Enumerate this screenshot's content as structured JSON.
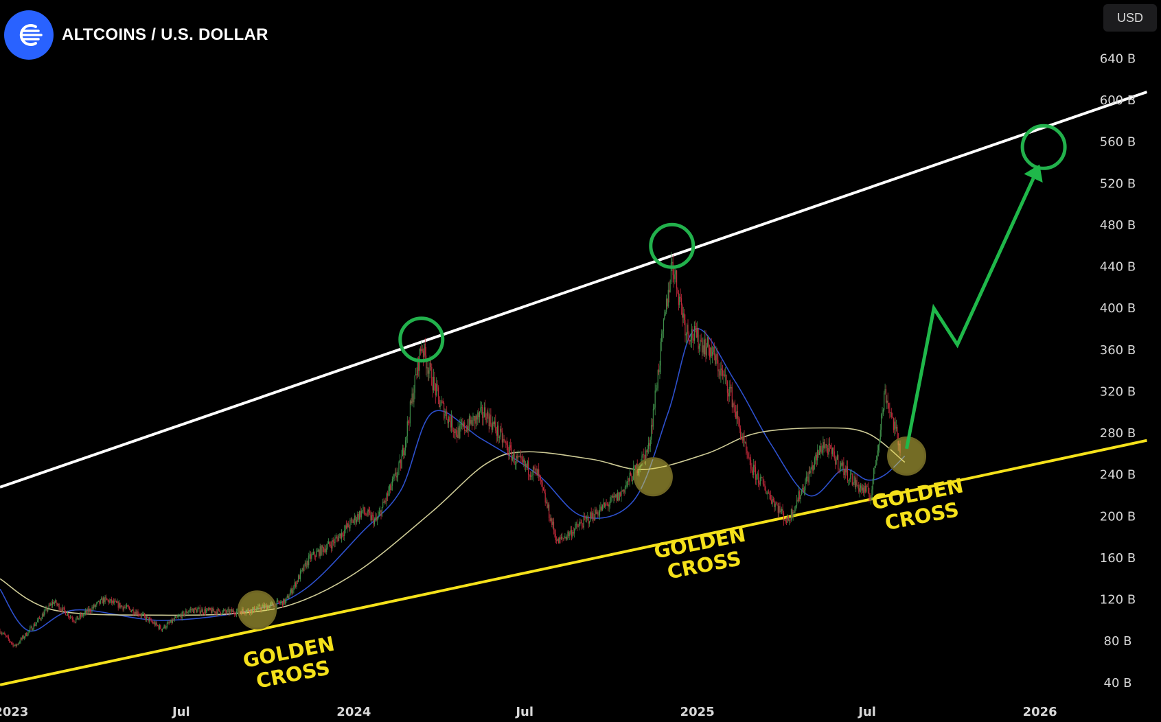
{
  "header": {
    "title": "ALTCOINS / U.S. DOLLAR",
    "logo_icon": "altcoin-logo-icon",
    "currency": "USD"
  },
  "colors": {
    "background": "#000000",
    "candle_up": "#3f8f4a",
    "candle_down": "#c0283a",
    "ma_fast": "#2f54d8",
    "ma_slow": "#f2efb0",
    "resistance_line": "#ffffff",
    "support_line": "#f5e11a",
    "highlight_circle": "#22b14c",
    "golden_cross_marker": "#e8d84a",
    "projection_arrow": "#1fb84a",
    "axis_text": "#d8d8d8"
  },
  "chart_data": {
    "type": "candlestick",
    "title": "ALTCOINS / U.S. DOLLAR",
    "y_unit": "B USD",
    "y_tick_labels": [
      "40 B",
      "80 B",
      "120 B",
      "160 B",
      "200 B",
      "240 B",
      "280 B",
      "320 B",
      "360 B",
      "400 B",
      "440 B",
      "480 B",
      "520 B",
      "560 B",
      "600 B",
      "640 B"
    ],
    "y_ticks": [
      40,
      80,
      120,
      160,
      200,
      240,
      280,
      320,
      360,
      400,
      440,
      480,
      520,
      560,
      600,
      640
    ],
    "x_tick_labels": [
      "2023",
      "Jul",
      "2024",
      "Jul",
      "2025",
      "Jul",
      "2026"
    ],
    "x_ticks": [
      "2023-01-01",
      "2023-07-01",
      "2024-01-01",
      "2024-07-01",
      "2025-01-01",
      "2025-07-01",
      "2026-01-01"
    ],
    "x_range": [
      "2022-12-20",
      "2026-05-10"
    ],
    "y_range": [
      30,
      670
    ],
    "grid": false,
    "price_path": [
      [
        "2022-12-20",
        90
      ],
      [
        "2023-01-05",
        75
      ],
      [
        "2023-01-25",
        95
      ],
      [
        "2023-02-15",
        118
      ],
      [
        "2023-03-10",
        100
      ],
      [
        "2023-04-10",
        120
      ],
      [
        "2023-05-15",
        108
      ],
      [
        "2023-06-10",
        92
      ],
      [
        "2023-07-10",
        110
      ],
      [
        "2023-08-20",
        108
      ],
      [
        "2023-09-15",
        110
      ],
      [
        "2023-10-20",
        118
      ],
      [
        "2023-11-15",
        160
      ],
      [
        "2023-12-10",
        175
      ],
      [
        "2024-01-10",
        205
      ],
      [
        "2024-01-25",
        195
      ],
      [
        "2024-02-20",
        250
      ],
      [
        "2024-03-13",
        365
      ],
      [
        "2024-04-01",
        310
      ],
      [
        "2024-04-20",
        280
      ],
      [
        "2024-05-20",
        300
      ],
      [
        "2024-06-20",
        255
      ],
      [
        "2024-07-15",
        240
      ],
      [
        "2024-08-05",
        175
      ],
      [
        "2024-09-10",
        200
      ],
      [
        "2024-10-10",
        220
      ],
      [
        "2024-11-10",
        265
      ],
      [
        "2024-12-05",
        445
      ],
      [
        "2024-12-20",
        380
      ],
      [
        "2025-01-15",
        360
      ],
      [
        "2025-02-05",
        320
      ],
      [
        "2025-02-25",
        250
      ],
      [
        "2025-04-07",
        195
      ],
      [
        "2025-05-15",
        270
      ],
      [
        "2025-06-20",
        230
      ],
      [
        "2025-07-05",
        220
      ],
      [
        "2025-07-20",
        320
      ],
      [
        "2025-08-05",
        265
      ]
    ],
    "series": [
      {
        "values": [
          [
            "2022-12-20",
            130
          ],
          [
            "2023-01-20",
            90
          ],
          [
            "2023-03-10",
            110
          ],
          [
            "2023-06-10",
            100
          ],
          [
            "2023-09-15",
            110
          ],
          [
            "2023-11-10",
            130
          ],
          [
            "2024-01-10",
            185
          ],
          [
            "2024-02-20",
            225
          ],
          [
            "2024-03-25",
            300
          ],
          [
            "2024-05-15",
            275
          ],
          [
            "2024-07-15",
            240
          ],
          [
            "2024-09-01",
            200
          ],
          [
            "2024-10-25",
            215
          ],
          [
            "2024-12-01",
            300
          ],
          [
            "2024-12-30",
            380
          ],
          [
            "2025-02-10",
            330
          ],
          [
            "2025-03-20",
            270
          ],
          [
            "2025-04-30",
            220
          ],
          [
            "2025-06-05",
            245
          ],
          [
            "2025-07-01",
            235
          ],
          [
            "2025-07-20",
            240
          ],
          [
            "2025-08-10",
            258
          ]
        ]
      },
      {
        "values": [
          [
            "2022-12-20",
            140
          ],
          [
            "2023-02-15",
            110
          ],
          [
            "2023-06-10",
            105
          ],
          [
            "2023-09-15",
            108
          ],
          [
            "2023-11-10",
            120
          ],
          [
            "2024-01-10",
            150
          ],
          [
            "2024-03-25",
            205
          ],
          [
            "2024-05-20",
            250
          ],
          [
            "2024-07-01",
            262
          ],
          [
            "2024-09-10",
            255
          ],
          [
            "2024-11-05",
            245
          ],
          [
            "2025-01-10",
            260
          ],
          [
            "2025-03-05",
            280
          ],
          [
            "2025-05-15",
            285
          ],
          [
            "2025-07-01",
            280
          ],
          [
            "2025-08-10",
            252
          ]
        ]
      }
    ],
    "trendlines": [
      {
        "from": [
          "2022-12-20",
          228
        ],
        "to": [
          "2026-04-25",
          608
        ]
      },
      {
        "from": [
          "2022-12-20",
          38
        ],
        "to": [
          "2026-04-25",
          273
        ]
      }
    ],
    "annotations": [
      {
        "kind": "circle",
        "at": [
          "2024-03-13",
          370
        ]
      },
      {
        "kind": "circle",
        "at": [
          "2024-12-05",
          460
        ]
      },
      {
        "kind": "circle",
        "at": [
          "2026-01-05",
          555
        ]
      },
      {
        "kind": "marker",
        "at": [
          "2023-09-20",
          110
        ]
      },
      {
        "kind": "marker",
        "at": [
          "2024-11-15",
          238
        ]
      },
      {
        "kind": "marker",
        "at": [
          "2025-08-12",
          258
        ]
      },
      {
        "kind": "label",
        "text": "GOLDEN\nCROSS",
        "at": [
          "2023-10-25",
          63
        ]
      },
      {
        "kind": "label",
        "text": "GOLDEN\nCROSS",
        "at": [
          "2025-01-05",
          168
        ]
      },
      {
        "kind": "label",
        "text": "GOLDEN\nCROSS",
        "at": [
          "2025-08-25",
          215
        ]
      }
    ],
    "projection_arrow": [
      [
        "2025-08-12",
        265
      ],
      [
        "2025-09-10",
        400
      ],
      [
        "2025-10-05",
        365
      ],
      [
        "2025-12-25",
        525
      ]
    ]
  }
}
